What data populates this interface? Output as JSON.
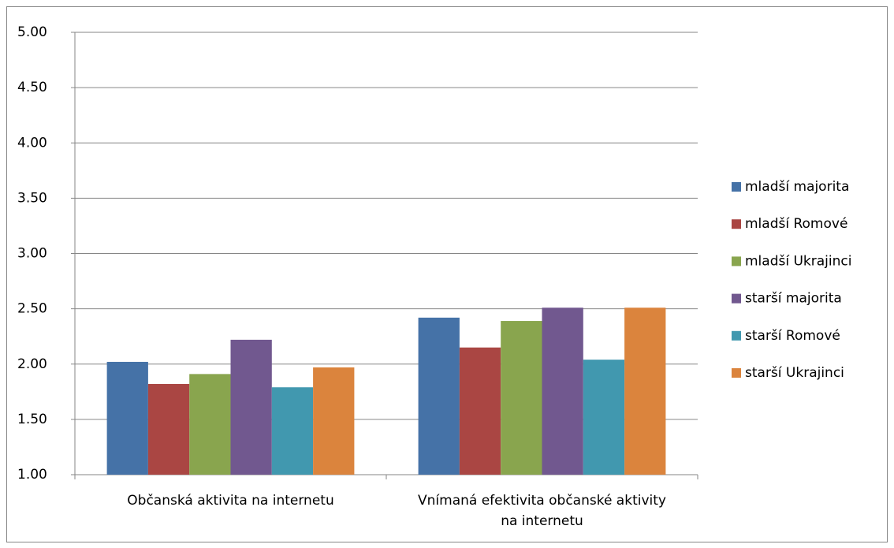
{
  "chart_data": {
    "type": "bar",
    "categories": [
      "Občanská aktivita na internetu",
      "Vnímaná efektivita občanské aktivity na internetu"
    ],
    "series": [
      {
        "name": "mladší majorita",
        "color": "#4572a7",
        "values": [
          2.02,
          2.42
        ]
      },
      {
        "name": "mladší Romové",
        "color": "#aa4643",
        "values": [
          1.82,
          2.15
        ]
      },
      {
        "name": "mladší Ukrajinci",
        "color": "#89a54e",
        "values": [
          1.91,
          2.39
        ]
      },
      {
        "name": "starší majorita",
        "color": "#71588f",
        "values": [
          2.22,
          2.51
        ]
      },
      {
        "name": "starší Romové",
        "color": "#4198af",
        "values": [
          1.79,
          2.04
        ]
      },
      {
        "name": "starší Ukrajinci",
        "color": "#db843d",
        "values": [
          1.97,
          2.51
        ]
      }
    ],
    "ylim": [
      1,
      5
    ],
    "yticks": [
      {
        "value": 1,
        "label": "1.00"
      },
      {
        "value": 1.5,
        "label": "1.50"
      },
      {
        "value": 2,
        "label": "2.00"
      },
      {
        "value": 2.5,
        "label": "2.50"
      },
      {
        "value": 3,
        "label": "3.00"
      },
      {
        "value": 3.5,
        "label": "3.50"
      },
      {
        "value": 4,
        "label": "4.00"
      },
      {
        "value": 4.5,
        "label": "4.50"
      },
      {
        "value": 5,
        "label": "5.00"
      }
    ],
    "grid": true,
    "legend": "right"
  }
}
